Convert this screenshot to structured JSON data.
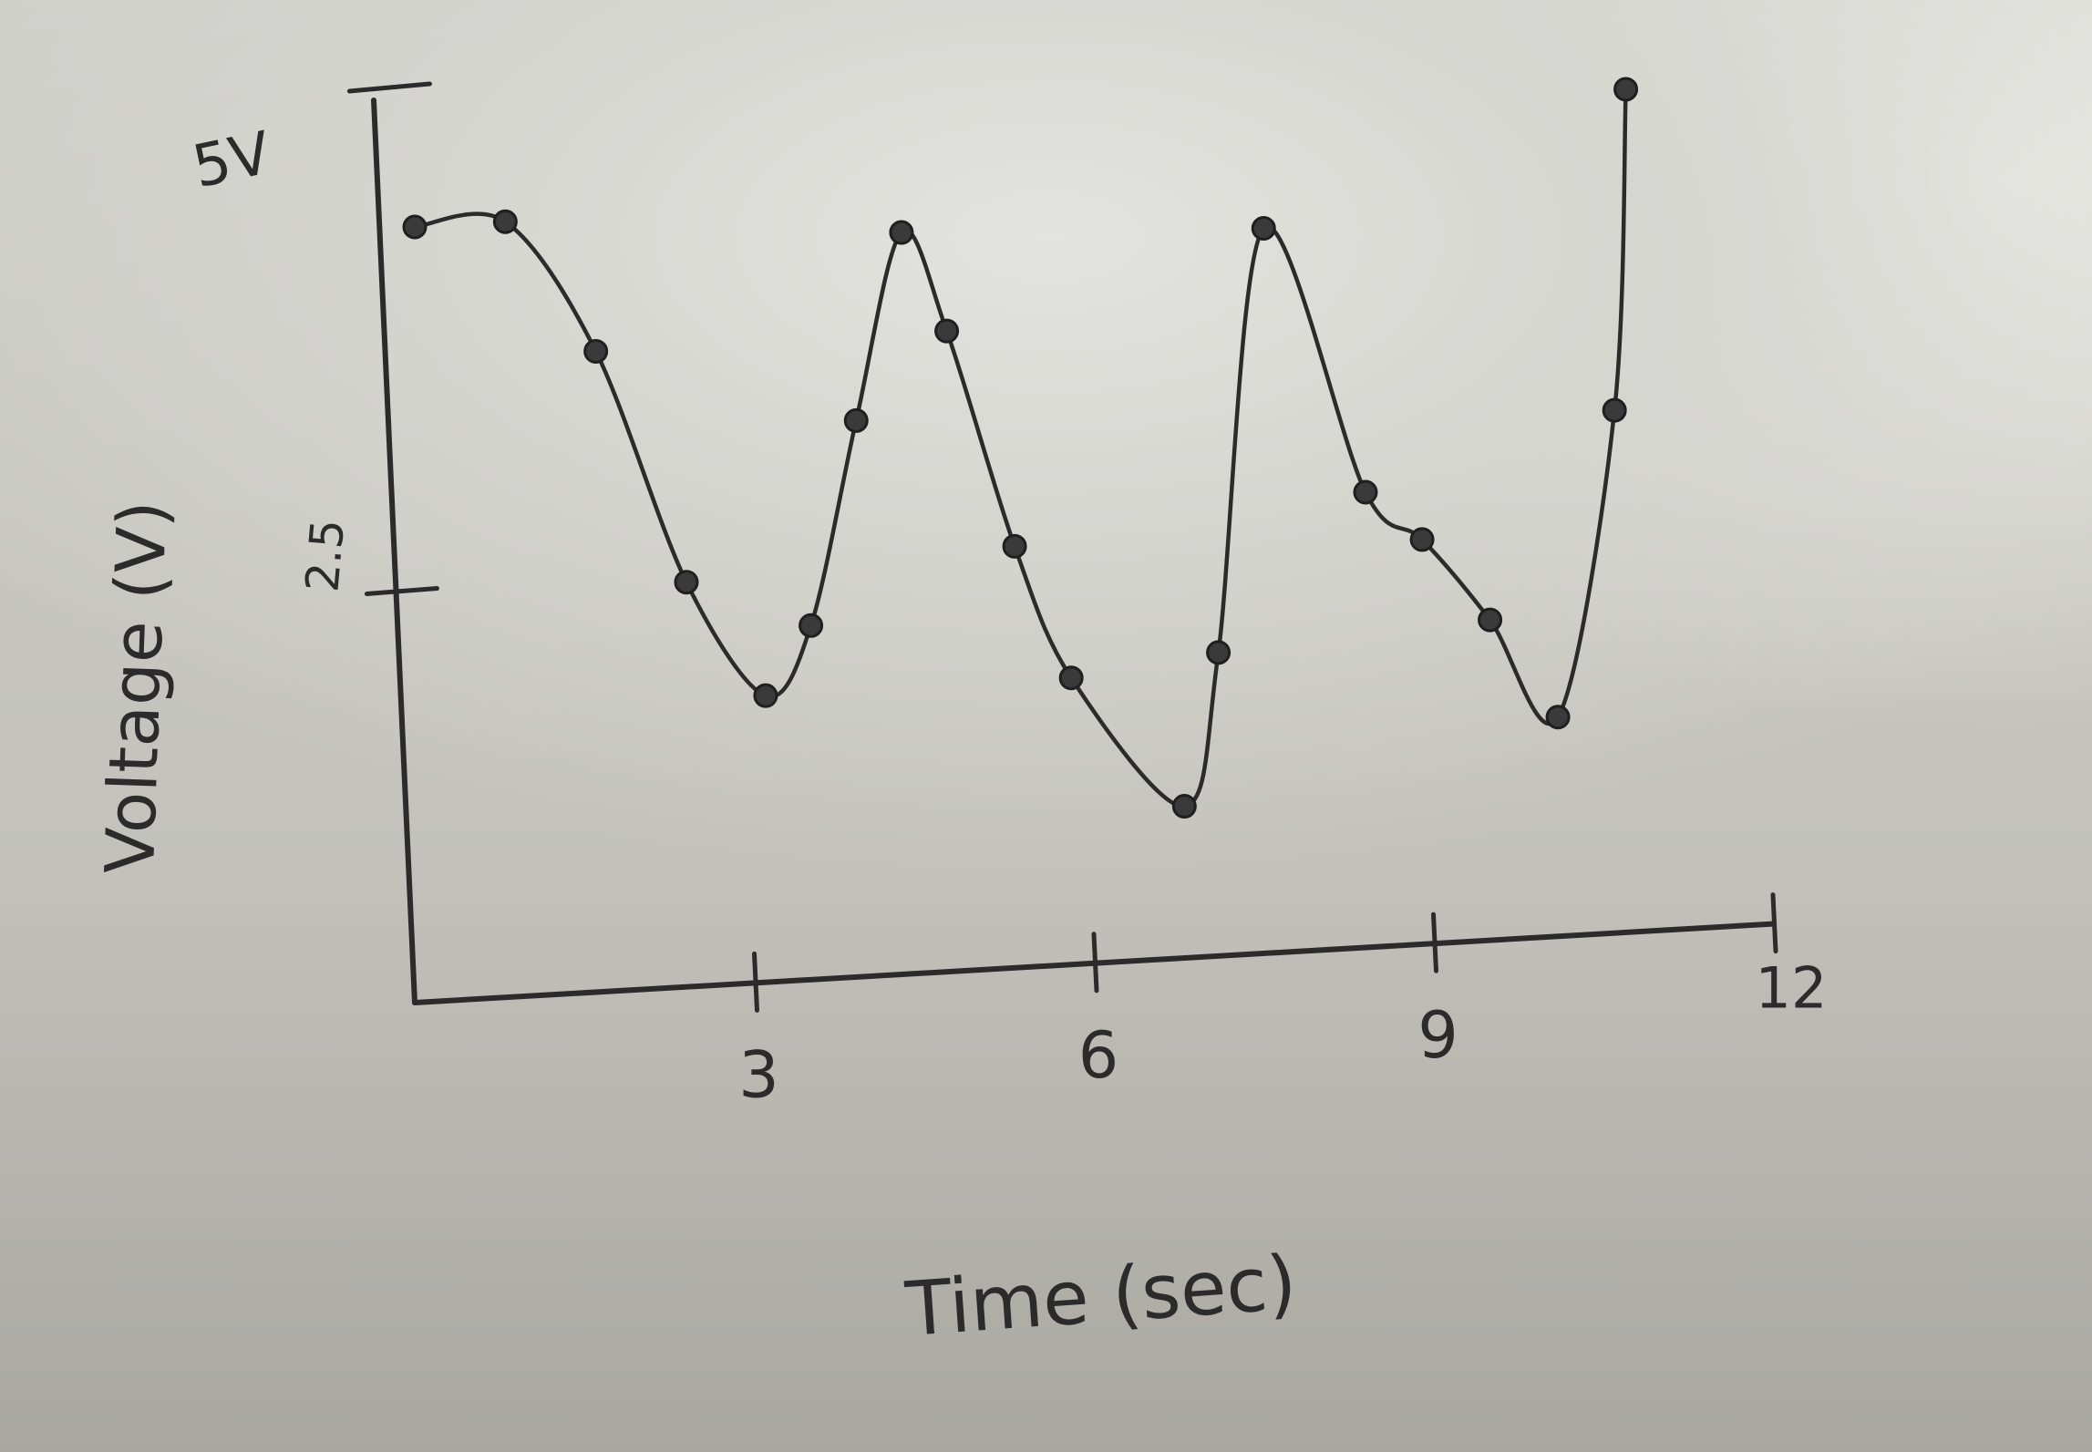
{
  "chart_data": {
    "type": "line",
    "title": "",
    "xlabel": "Time (sec)",
    "ylabel": "Voltage (V)",
    "xlim": [
      0,
      12
    ],
    "ylim": [
      0,
      5
    ],
    "x_ticks": [
      {
        "value": 3,
        "label": "3"
      },
      {
        "value": 6,
        "label": "6"
      },
      {
        "value": 9,
        "label": "9"
      },
      {
        "value": 12,
        "label": "12"
      }
    ],
    "y_ticks": [
      {
        "value": 2.5,
        "label": "2.5"
      },
      {
        "value": 5,
        "label": "5V"
      }
    ],
    "grid": false,
    "legend": "none",
    "series": [
      {
        "color": "#2b2b2b",
        "points": [
          [
            0.0,
            4.6
          ],
          [
            0.8,
            4.6
          ],
          [
            1.6,
            3.8
          ],
          [
            2.4,
            2.4
          ],
          [
            3.1,
            1.7
          ],
          [
            3.5,
            2.1
          ],
          [
            3.9,
            3.3
          ],
          [
            4.3,
            4.4
          ],
          [
            4.7,
            3.8
          ],
          [
            5.3,
            2.5
          ],
          [
            5.8,
            1.7
          ],
          [
            6.8,
            0.9
          ],
          [
            7.1,
            1.8
          ],
          [
            7.5,
            4.3
          ],
          [
            8.4,
            2.7
          ],
          [
            8.9,
            2.4
          ],
          [
            9.5,
            1.9
          ],
          [
            10.1,
            1.3
          ],
          [
            10.6,
            3.1
          ],
          [
            10.7,
            5.0
          ]
        ]
      }
    ]
  }
}
